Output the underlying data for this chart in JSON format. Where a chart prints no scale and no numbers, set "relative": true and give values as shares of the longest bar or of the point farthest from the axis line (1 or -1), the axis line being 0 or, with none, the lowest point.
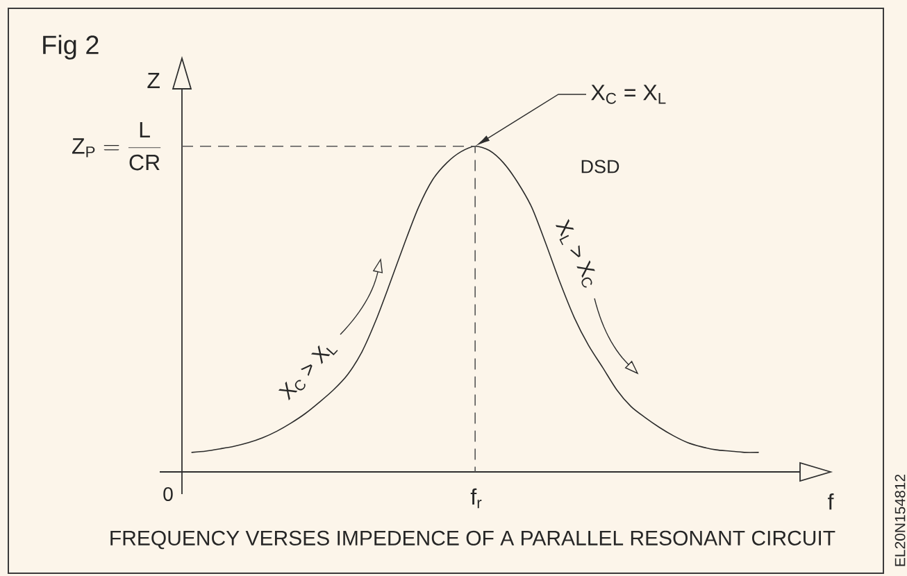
{
  "chart_data": {
    "type": "line",
    "title": "Fig 2",
    "xlabel": "f",
    "ylabel": "Z",
    "relative": true,
    "categories": [
      null,
      null,
      null,
      null,
      null,
      null,
      null,
      null,
      null,
      null,
      null,
      null,
      null,
      null,
      null,
      null,
      null,
      null,
      null,
      null,
      null,
      null,
      null,
      null,
      null,
      null,
      null,
      null,
      null,
      null,
      null,
      null,
      null,
      null,
      null,
      null,
      null,
      null,
      null,
      null,
      null
    ],
    "values": [
      0.06,
      0.064,
      0.071,
      0.079,
      0.09,
      0.105,
      0.125,
      0.15,
      0.179,
      0.214,
      0.252,
      0.299,
      0.368,
      0.466,
      0.581,
      0.7,
      0.812,
      0.897,
      0.949,
      0.983,
      1,
      0.987,
      0.949,
      0.889,
      0.812,
      0.7,
      0.581,
      0.474,
      0.389,
      0.321,
      0.252,
      0.201,
      0.167,
      0.137,
      0.111,
      0.09,
      0.077,
      0.068,
      0.064,
      0.06,
      0.06
    ],
    "color": "#2b2b2b",
    "ref_lines": [
      {
        "axis": "y",
        "value": 1,
        "label": "\\mathrm{Z_{P}} = \\frac{\\mathrm{L}}{\\mathrm{CR}}",
        "line_style": "dashed",
        "color": "#555555"
      }
    ],
    "annotations": [
      "X$_{C}$ = X$_{L}$",
      "DSD",
      "X$_{C}$ > X$_{L}$",
      "X$_{L}$ > X$_{C}$",
      "0",
      "f$_{r}$",
      "FREQUENCY VERSES IMPEDENCE OF A PARALLEL RESONANT CIRCUIT",
      "EL20N154812"
    ]
  }
}
